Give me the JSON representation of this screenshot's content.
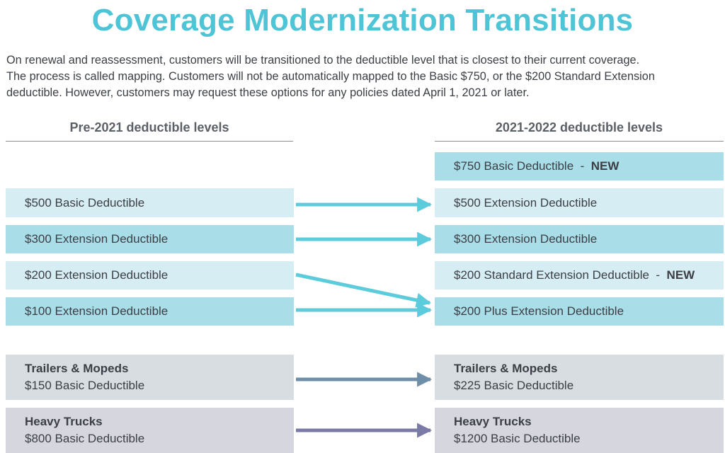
{
  "title": "Coverage Modernization Transitions",
  "intro": [
    "On renewal and reassessment, customers will be transitioned to the deductible level that is closest to their current coverage.",
    "The process is called mapping. Customers will not be automatically mapped to the Basic $750, or the $200 Standard Extension",
    "deductible. However, customers may request these options for any policies dated April 1, 2021 or later."
  ],
  "left_header": "Pre-2021 deductible levels",
  "right_header": "2021-2022 deductible levels",
  "new_separator": "-",
  "new_tag": "NEW",
  "left": {
    "basic500": "$500 Basic Deductible",
    "ext300": "$300 Extension Deductible",
    "ext200": "$200 Extension Deductible",
    "ext100": "$100 Extension Deductible",
    "trailers_title": "Trailers & Mopeds",
    "trailers_value": "$150 Basic Deductible",
    "trucks_title": "Heavy Trucks",
    "trucks_value": "$800 Basic Deductible"
  },
  "right": {
    "basic750": "$750 Basic Deductible",
    "ext500": "$500 Extension Deductible",
    "ext300": "$300 Extension Deductible",
    "std200": "$200 Standard Extension Deductible",
    "plus200": "$200 Plus Extension Deductible",
    "trailers_title": "Trailers & Mopeds",
    "trailers_value": "$225 Basic Deductible",
    "trucks_title": "Heavy Trucks",
    "trucks_value": "$1200 Basic Deductible"
  },
  "colors": {
    "title": "#4ec5d6",
    "arrow_teal": "#5ccbdc",
    "arrow_slate": "#6d8ea6",
    "arrow_purple": "#7b79a6"
  }
}
